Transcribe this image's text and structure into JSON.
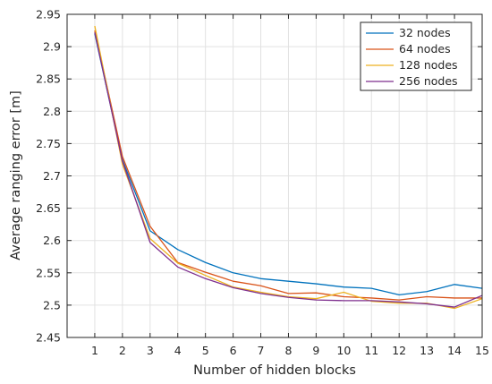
{
  "chart_data": {
    "type": "line",
    "title": "",
    "xlabel": "Number of hidden blocks",
    "ylabel": "Average ranging error [m]",
    "x": [
      1,
      2,
      3,
      4,
      5,
      6,
      7,
      8,
      9,
      10,
      11,
      12,
      13,
      14,
      15
    ],
    "xlim": [
      0,
      15
    ],
    "ylim": [
      2.45,
      2.95
    ],
    "xticks": [
      "1",
      "2",
      "3",
      "4",
      "5",
      "6",
      "7",
      "8",
      "9",
      "10",
      "11",
      "12",
      "13",
      "14",
      "15"
    ],
    "yticks": [
      "2.45",
      "2.5",
      "2.55",
      "2.6",
      "2.65",
      "2.7",
      "2.75",
      "2.8",
      "2.85",
      "2.9",
      "2.95"
    ],
    "grid": true,
    "legend_position": "top-right",
    "series": [
      {
        "name": "32 nodes",
        "color": "#0072BD",
        "values": [
          2.92,
          2.725,
          2.615,
          2.586,
          2.566,
          2.55,
          2.541,
          2.537,
          2.533,
          2.528,
          2.526,
          2.516,
          2.521,
          2.532,
          2.526
        ]
      },
      {
        "name": "64 nodes",
        "color": "#D95319",
        "values": [
          2.925,
          2.73,
          2.622,
          2.566,
          2.551,
          2.537,
          2.53,
          2.518,
          2.519,
          2.513,
          2.511,
          2.508,
          2.513,
          2.511,
          2.511
        ]
      },
      {
        "name": "128 nodes",
        "color": "#EDB120",
        "values": [
          2.932,
          2.718,
          2.603,
          2.565,
          2.546,
          2.528,
          2.52,
          2.513,
          2.51,
          2.52,
          2.506,
          2.503,
          2.503,
          2.495,
          2.51
        ]
      },
      {
        "name": "256 nodes",
        "color": "#7E2F8E",
        "values": [
          2.922,
          2.723,
          2.597,
          2.559,
          2.541,
          2.527,
          2.518,
          2.512,
          2.508,
          2.507,
          2.507,
          2.505,
          2.502,
          2.497,
          2.515
        ]
      }
    ]
  }
}
